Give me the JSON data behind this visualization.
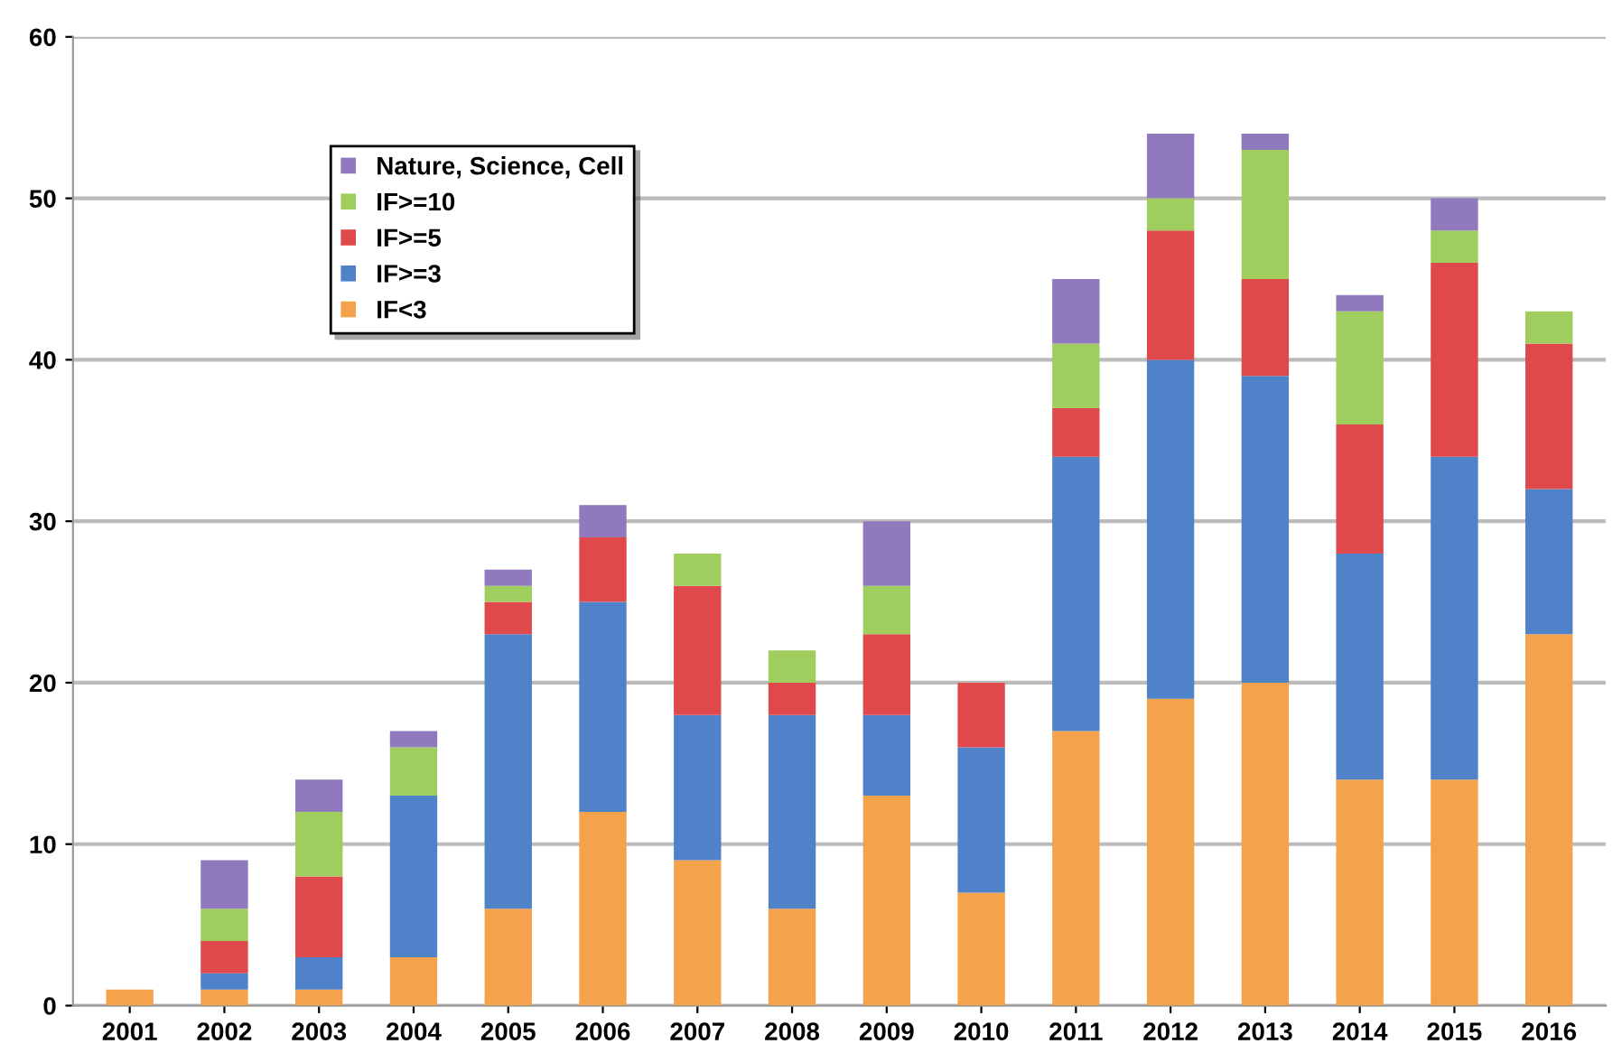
{
  "chart_data": {
    "type": "bar",
    "stacked": true,
    "categories": [
      "2001",
      "2002",
      "2003",
      "2004",
      "2005",
      "2006",
      "2007",
      "2008",
      "2009",
      "2010",
      "2011",
      "2012",
      "2013",
      "2014",
      "2015",
      "2016"
    ],
    "series": [
      {
        "name": "IF<3",
        "color": "#f4a24c",
        "values": [
          1,
          1,
          1,
          3,
          6,
          12,
          9,
          6,
          13,
          7,
          17,
          19,
          20,
          14,
          14,
          23
        ]
      },
      {
        "name": "IF>=3",
        "color": "#4f82c8",
        "values": [
          0,
          1,
          2,
          10,
          17,
          13,
          9,
          12,
          5,
          9,
          17,
          21,
          19,
          14,
          20,
          9
        ]
      },
      {
        "name": "IF>=5",
        "color": "#e0494b",
        "values": [
          0,
          2,
          5,
          0,
          2,
          4,
          8,
          2,
          5,
          4,
          3,
          8,
          6,
          8,
          12,
          9
        ]
      },
      {
        "name": "IF>=10",
        "color": "#9fcd5e",
        "values": [
          0,
          2,
          4,
          3,
          1,
          0,
          2,
          2,
          3,
          0,
          4,
          2,
          8,
          7,
          2,
          2
        ]
      },
      {
        "name": "Nature, Science, Cell",
        "color": "#9079bd",
        "values": [
          0,
          3,
          2,
          1,
          1,
          2,
          0,
          0,
          4,
          0,
          4,
          4,
          1,
          1,
          2,
          0
        ]
      }
    ],
    "ylim": [
      0,
      60
    ],
    "yticks": [
      0,
      10,
      20,
      30,
      40,
      50,
      60
    ],
    "grid": "y",
    "legend": "top left"
  }
}
